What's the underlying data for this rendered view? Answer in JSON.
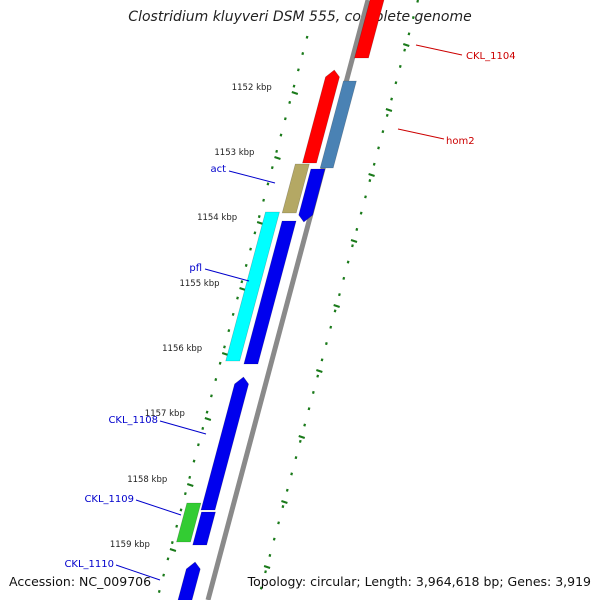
{
  "title": "Clostridium kluyveri DSM 555, complete genome",
  "accession_text": "Accession: NC_009706",
  "summary_text": "Topology: circular; Length: 3,964,618 bp; Genes: 3,919",
  "colors": {
    "backbone": "#8a8a8a",
    "ticks": "#1a7a1a",
    "forward_label": "#0000cc",
    "reverse_label": "#cc0000"
  },
  "kbp_labels": [
    "1152 kbp",
    "1153 kbp",
    "1154 kbp",
    "1155 kbp",
    "1156 kbp",
    "1157 kbp",
    "1158 kbp",
    "1159 kbp"
  ],
  "genes": [
    {
      "name": "CKL_1104",
      "strand": "reverse",
      "color": "#ff0000",
      "labeled": true
    },
    {
      "name": "hom2",
      "strand": "reverse",
      "color": "#ff0000",
      "labeled": true
    },
    {
      "name": "hom2-feature",
      "strand": "reverse",
      "color": "#4a82b4",
      "labeled": false
    },
    {
      "name": "act",
      "strand": "forward",
      "color": "#b4a864",
      "labeled": true
    },
    {
      "name": "act-gene",
      "strand": "forward",
      "color": "#0000ee",
      "labeled": false
    },
    {
      "name": "pfl",
      "strand": "forward",
      "color": "#00ffff",
      "labeled": true
    },
    {
      "name": "pfl-gene",
      "strand": "forward",
      "color": "#0000ee",
      "labeled": false
    },
    {
      "name": "CKL_1108",
      "strand": "forward",
      "color": "#0000ee",
      "labeled": true
    },
    {
      "name": "CKL_1109",
      "strand": "forward",
      "color": "#33cc33",
      "labeled": true
    },
    {
      "name": "CKL_1109-gene",
      "strand": "forward",
      "color": "#0000ee",
      "labeled": false
    },
    {
      "name": "CKL_1110",
      "strand": "forward",
      "color": "#0000ee",
      "labeled": true
    }
  ]
}
